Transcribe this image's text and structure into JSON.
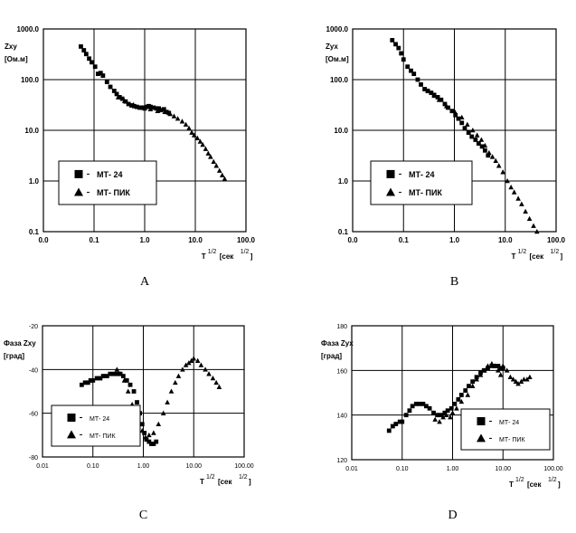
{
  "chart_data": [
    {
      "type": "scatter",
      "caption": "A",
      "ylabel": [
        "Zxy",
        "[Ом.м]"
      ],
      "xlabel": {
        "base": "T",
        "exp": "1/2",
        "unit": "[сек",
        "unit_exp": "1/2",
        "close": "]"
      },
      "xscale": "log",
      "yscale": "log",
      "xlim": [
        0.01,
        100
      ],
      "ylim": [
        0.1,
        1000
      ],
      "xticks": [
        "0.0",
        "0.1",
        "1.0",
        "10.0",
        "100.0"
      ],
      "yticks": [
        "0.1",
        "1.0",
        "10.0",
        "100.0",
        "1000.0"
      ],
      "grid": true,
      "legend": [
        "МТ- 24",
        "МТ- ПИК"
      ],
      "series": [
        {
          "name": "МТ- 24",
          "marker": "square",
          "x": [
            0.055,
            0.063,
            0.07,
            0.08,
            0.09,
            0.105,
            0.12,
            0.135,
            0.15,
            0.18,
            0.21,
            0.25,
            0.28,
            0.32,
            0.36,
            0.42,
            0.48,
            0.55,
            0.62,
            0.7,
            0.8,
            0.9,
            1.0,
            1.1,
            1.2,
            1.3,
            1.5,
            1.7,
            1.9,
            2.1,
            2.4,
            2.7,
            3.0
          ],
          "y": [
            450,
            380,
            320,
            260,
            220,
            180,
            130,
            135,
            120,
            90,
            72,
            60,
            52,
            45,
            42,
            37,
            33,
            31,
            30,
            29,
            28,
            28,
            27,
            29,
            30,
            29,
            28,
            27,
            27,
            25,
            26,
            23,
            22
          ]
        },
        {
          "name": "МТ- ПИК",
          "marker": "triangle",
          "x": [
            0.3,
            0.4,
            0.6,
            0.9,
            1.3,
            1.8,
            2.5,
            3.2,
            3.8,
            4.5,
            5.5,
            6.5,
            7.5,
            8.5,
            9.5,
            11,
            12.5,
            14,
            16,
            18,
            20,
            23,
            26,
            30,
            34,
            38
          ],
          "y": [
            45,
            38,
            32,
            28,
            26,
            24,
            23,
            21,
            19,
            17,
            15,
            13,
            11,
            9,
            8,
            7,
            6,
            5.2,
            4.3,
            3.5,
            3.0,
            2.4,
            2.0,
            1.6,
            1.3,
            1.1
          ]
        }
      ]
    },
    {
      "type": "scatter",
      "caption": "B",
      "ylabel": [
        "Zyx",
        "[Ом.м]"
      ],
      "xlabel": {
        "base": "T",
        "exp": "1/2",
        "unit": "[сек",
        "unit_exp": "1/2",
        "close": "]"
      },
      "xscale": "log",
      "yscale": "log",
      "xlim": [
        0.01,
        100
      ],
      "ylim": [
        0.1,
        1000
      ],
      "xticks": [
        "0.0",
        "0.1",
        "1.0",
        "10.0",
        "100.0"
      ],
      "yticks": [
        "0.1",
        "1.0",
        "10.0",
        "100.0",
        "1000.0"
      ],
      "grid": true,
      "legend": [
        "МТ- 24",
        "МТ- ПИК"
      ],
      "series": [
        {
          "name": "МТ- 24",
          "marker": "square",
          "x": [
            0.06,
            0.07,
            0.08,
            0.09,
            0.1,
            0.12,
            0.14,
            0.16,
            0.19,
            0.22,
            0.26,
            0.3,
            0.35,
            0.4,
            0.47,
            0.55,
            0.65,
            0.75,
            0.9,
            1.05,
            1.2,
            1.4,
            1.6,
            1.9,
            2.2,
            2.6,
            3.0,
            3.5,
            4.0,
            4.6
          ],
          "y": [
            600,
            500,
            420,
            330,
            250,
            180,
            150,
            130,
            100,
            80,
            65,
            60,
            55,
            50,
            45,
            40,
            33,
            28,
            24,
            20,
            17,
            14,
            11,
            9,
            7.5,
            6.5,
            5.5,
            4.8,
            4.0,
            3.2
          ]
        },
        {
          "name": "МТ- ПИК",
          "marker": "triangle",
          "x": [
            0.3,
            0.4,
            0.5,
            0.7,
            1.0,
            1.4,
            1.8,
            2.3,
            2.8,
            3.4,
            4,
            4.8,
            5.6,
            6.5,
            7.5,
            9,
            11,
            13,
            15,
            18,
            21,
            25,
            30,
            36,
            42
          ],
          "y": [
            60,
            48,
            40,
            30,
            24,
            18,
            13,
            10,
            8,
            6.5,
            5,
            3.6,
            3,
            2.5,
            2.0,
            1.5,
            1.0,
            0.75,
            0.6,
            0.45,
            0.35,
            0.25,
            0.18,
            0.13,
            0.1
          ]
        }
      ]
    },
    {
      "type": "scatter",
      "caption": "C",
      "ylabel": [
        "Фаза Zxy",
        "[град]"
      ],
      "xlabel": {
        "base": "T",
        "exp": "1/2",
        "unit": "[сек",
        "unit_exp": "1/2",
        "close": "]"
      },
      "xscale": "log",
      "yscale": "linear",
      "xlim": [
        0.01,
        100
      ],
      "ylim": [
        -80,
        -20
      ],
      "xticks": [
        "0.01",
        "0.10",
        "1.00",
        "10.00",
        "100.00"
      ],
      "yticks": [
        "-80",
        "-60",
        "-40",
        "-20"
      ],
      "grid": true,
      "legend": [
        "МТ- 24",
        "МТ- ПИК"
      ],
      "series": [
        {
          "name": "МТ- 24",
          "marker": "square",
          "x": [
            0.06,
            0.07,
            0.08,
            0.09,
            0.1,
            0.12,
            0.14,
            0.16,
            0.19,
            0.22,
            0.26,
            0.3,
            0.35,
            0.4,
            0.47,
            0.55,
            0.65,
            0.75,
            0.85,
            0.95,
            1.05,
            1.15,
            1.3,
            1.45,
            1.6,
            1.8
          ],
          "y": [
            -47,
            -46,
            -46,
            -45,
            -45,
            -44,
            -44,
            -43,
            -43,
            -42,
            -42,
            -42,
            -42,
            -43,
            -45,
            -47,
            -50,
            -55,
            -60,
            -65,
            -69,
            -72,
            -73,
            -74,
            -74,
            -73
          ]
        },
        {
          "name": "МТ- ПИК",
          "marker": "triangle",
          "x": [
            0.3,
            0.35,
            0.42,
            0.5,
            0.6,
            0.7,
            0.8,
            0.95,
            1.1,
            1.3,
            1.6,
            2.0,
            2.5,
            3.0,
            3.6,
            4.3,
            5,
            6,
            7,
            8,
            9,
            10,
            12,
            14,
            17,
            20,
            24,
            28,
            32
          ],
          "y": [
            -40,
            -42,
            -45,
            -50,
            -56,
            -62,
            -66,
            -68,
            -71,
            -70,
            -69,
            -65,
            -60,
            -55,
            -50,
            -46,
            -43,
            -40,
            -38,
            -37,
            -36,
            -35,
            -36,
            -38,
            -40,
            -42,
            -44,
            -46,
            -48
          ]
        }
      ]
    },
    {
      "type": "scatter",
      "caption": "D",
      "ylabel": [
        "Фаза Zyx",
        "[град]"
      ],
      "xlabel": {
        "base": "T",
        "exp": "1/2",
        "unit": "[сек",
        "unit_exp": "1/2",
        "close": "]"
      },
      "xscale": "log",
      "yscale": "linear",
      "xlim": [
        0.01,
        100
      ],
      "ylim": [
        120,
        180
      ],
      "xticks": [
        "0.01",
        "0.10",
        "1.00",
        "10.00",
        "100.00"
      ],
      "yticks": [
        "120",
        "140",
        "160",
        "180"
      ],
      "grid": true,
      "legend": [
        "МТ- 24",
        "МТ- ПИК"
      ],
      "series": [
        {
          "name": "МТ- 24",
          "marker": "square",
          "x": [
            0.055,
            0.065,
            0.075,
            0.09,
            0.1,
            0.12,
            0.14,
            0.16,
            0.19,
            0.22,
            0.26,
            0.3,
            0.35,
            0.42,
            0.5,
            0.6,
            0.7,
            0.8,
            0.95,
            1.1,
            1.3,
            1.5,
            1.8,
            2.1,
            2.5,
            3,
            3.6,
            4.2,
            5,
            6,
            7,
            8,
            9,
            10
          ],
          "y": [
            133,
            135,
            136,
            137,
            137,
            140,
            142,
            144,
            145,
            145,
            145,
            144,
            143,
            141,
            140,
            140,
            141,
            142,
            143,
            145,
            147,
            149,
            151,
            153,
            155,
            157,
            159,
            160,
            161,
            162,
            162,
            162,
            161,
            161
          ]
        },
        {
          "name": "МТ- ПИК",
          "marker": "triangle",
          "x": [
            0.45,
            0.55,
            0.65,
            0.75,
            0.9,
            1.0,
            1.2,
            1.5,
            2,
            2.5,
            3,
            3.6,
            4.3,
            5,
            6,
            7,
            8,
            9,
            10,
            12,
            14,
            16,
            18,
            20,
            23,
            26,
            30,
            34
          ],
          "y": [
            138,
            137,
            139,
            140,
            139,
            141,
            143,
            146,
            149,
            153,
            156,
            158,
            160,
            162,
            163,
            162,
            160,
            158,
            162,
            160,
            157,
            156,
            155,
            154,
            155,
            156,
            156,
            157
          ]
        }
      ]
    }
  ]
}
